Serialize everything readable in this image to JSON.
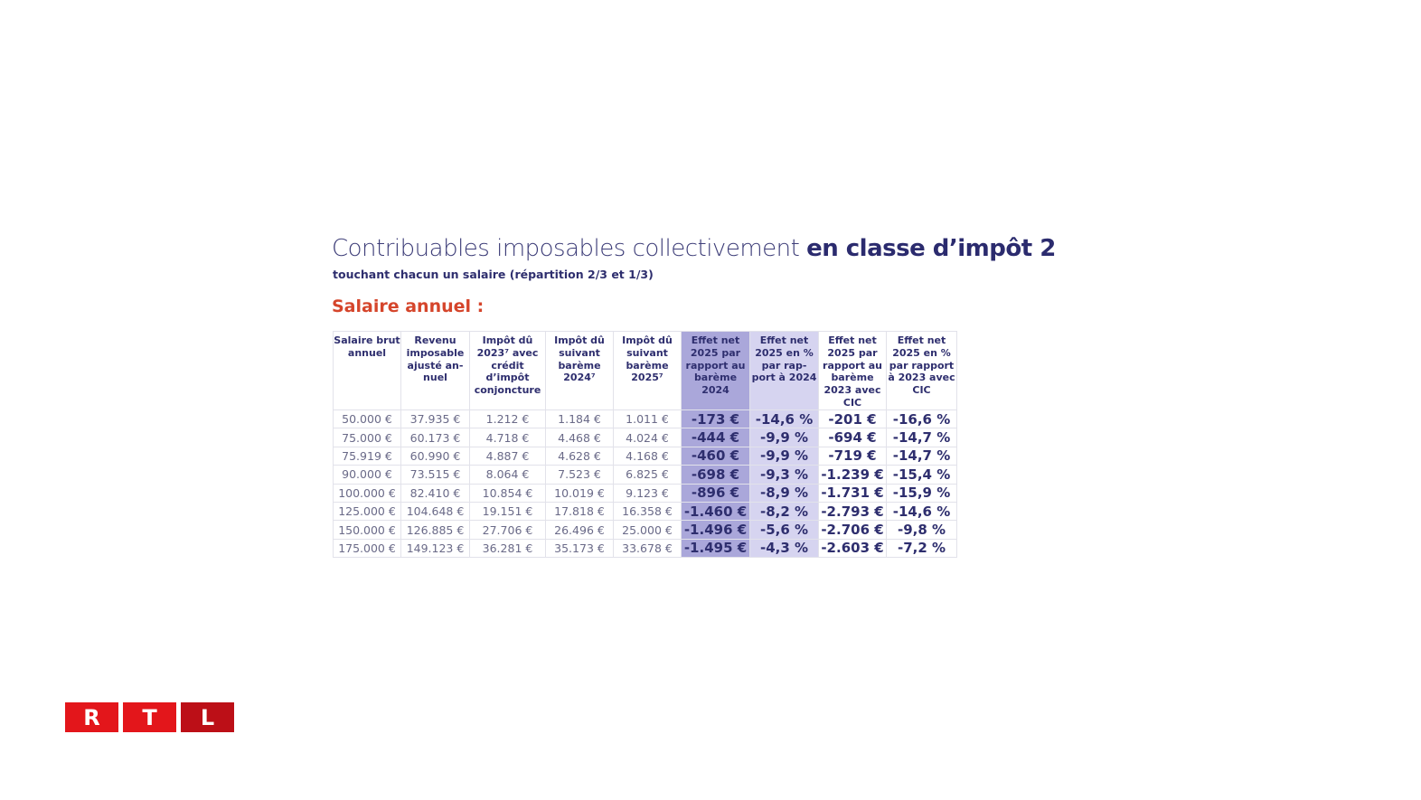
{
  "title_light": "Contribuables imposables collectivement ",
  "title_bold": "en classe d’impôt 2",
  "subtitle": "touchant chacun un salaire (répartition 2/3 et 1/3)",
  "section": "Salaire annuel :",
  "headers": [
    "Salaire brut annuel",
    "Revenu imposable ajusté an-nuel",
    "Impôt dû 2023⁷ avec crédit d’impôt conjoncture",
    "Impôt dû suivant barème 2024⁷",
    "Impôt dû suivant barème 2025⁷",
    "Effet net 2025 par rapport au barème 2024",
    "Effet net 2025 en % par rap-port à 2024",
    "Effet net 2025 par rapport au barème 2023 avec CIC",
    "Effet net 2025 en % par rapport à 2023 avec CIC"
  ],
  "rows": [
    [
      "50.000 €",
      "37.935 €",
      "1.212 €",
      "1.184 €",
      "1.011 €",
      "-173 €",
      "-14,6 %",
      "-201 €",
      "-16,6 %"
    ],
    [
      "75.000 €",
      "60.173 €",
      "4.718 €",
      "4.468 €",
      "4.024 €",
      "-444 €",
      "-9,9 %",
      "-694 €",
      "-14,7 %"
    ],
    [
      "75.919 €",
      "60.990 €",
      "4.887 €",
      "4.628 €",
      "4.168 €",
      "-460 €",
      "-9,9 %",
      "-719 €",
      "-14,7 %"
    ],
    [
      "90.000 €",
      "73.515 €",
      "8.064 €",
      "7.523 €",
      "6.825 €",
      "-698 €",
      "-9,3 %",
      "-1.239 €",
      "-15,4 %"
    ],
    [
      "100.000 €",
      "82.410 €",
      "10.854 €",
      "10.019 €",
      "9.123 €",
      "-896 €",
      "-8,9 %",
      "-1.731 €",
      "-15,9 %"
    ],
    [
      "125.000 €",
      "104.648 €",
      "19.151 €",
      "17.818 €",
      "16.358 €",
      "-1.460 €",
      "-8,2 %",
      "-2.793 €",
      "-14,6 %"
    ],
    [
      "150.000 €",
      "126.885 €",
      "27.706 €",
      "26.496 €",
      "25.000 €",
      "-1.496 €",
      "-5,6 %",
      "-2.706 €",
      "-9,8 %"
    ],
    [
      "175.000 €",
      "149.123 €",
      "36.281 €",
      "35.173 €",
      "33.678 €",
      "-1.495 €",
      "-4,3 %",
      "-2.603 €",
      "-7,2 %"
    ]
  ],
  "logo": [
    "R",
    "T",
    "L"
  ],
  "colors": {
    "navy": "#2e2e6e",
    "accent": "#d5452b",
    "highlight1": "#aaa7da",
    "highlight2": "#d6d4f0",
    "logo_red": "#e3161b"
  }
}
